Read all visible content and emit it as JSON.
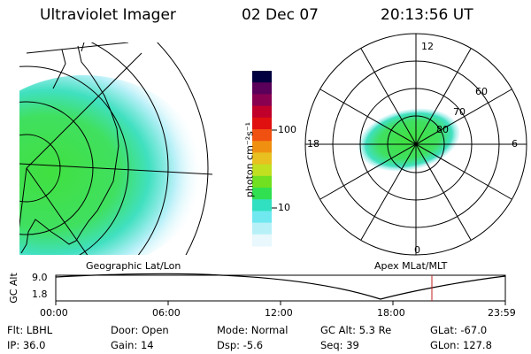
{
  "header": {
    "title": "Ultraviolet Imager",
    "date": "02 Dec 07",
    "time": "20:13:56 UT"
  },
  "colorbar": {
    "unit_label": "photon cm⁻²s⁻¹",
    "ticks": [
      "100",
      "10"
    ],
    "colors": [
      "#000040",
      "#5a005a",
      "#8a0050",
      "#c0002a",
      "#e01010",
      "#f05010",
      "#f09010",
      "#e8c020",
      "#c0e020",
      "#70e020",
      "#30e050",
      "#30e0c0",
      "#70e8f0",
      "#b8f0f8",
      "#e8f8fc"
    ]
  },
  "geo_panel": {
    "label": "Geographic Lat/Lon"
  },
  "polar_panel": {
    "label": "Apex  MLat/MLT",
    "mlt_labels": [
      "12",
      "18",
      "6",
      "0"
    ],
    "lat_labels": [
      "60",
      "70",
      "80"
    ]
  },
  "altitude_plot": {
    "ylabel": "GC Alt",
    "yticks": [
      "9.0",
      "1.8"
    ],
    "xticks": [
      "00:00",
      "06:00",
      "12:00",
      "18:00",
      "23:59"
    ],
    "current_time_marker": "20:13:56"
  },
  "info": {
    "row1": {
      "flt": "Flt: LBHL",
      "door": "Door: Open",
      "mode": "Mode: Normal",
      "gcalt": "GC Alt: 5.3 Re",
      "glat": "GLat: -67.0"
    },
    "row2": {
      "ip": "IP: 36.0",
      "gain": "Gain: 14",
      "dsp": "Dsp:   -5.6",
      "seq": "Seq: 39",
      "glon": "GLon: 127.8"
    }
  }
}
